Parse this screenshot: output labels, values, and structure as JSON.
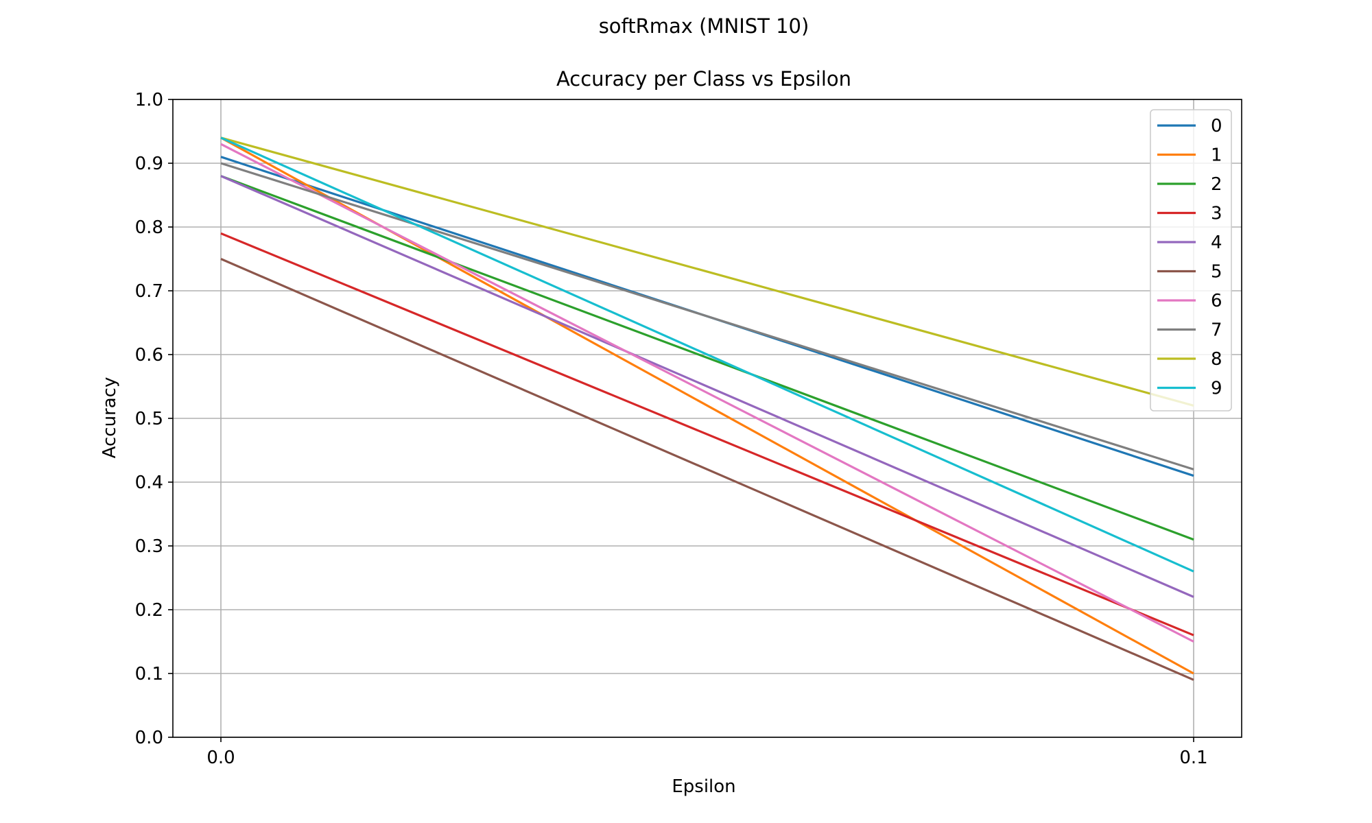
{
  "suptitle": "softRmax (MNIST 10)",
  "chart_data": {
    "type": "line",
    "title": "Accuracy per Class vs Epsilon",
    "xlabel": "Epsilon",
    "ylabel": "Accuracy",
    "x": [
      0.0,
      0.1
    ],
    "x_tick_labels": [
      "0.0",
      "0.1"
    ],
    "ylim": [
      0.0,
      1.0
    ],
    "y_tick_labels": [
      "0.0",
      "0.1",
      "0.2",
      "0.3",
      "0.4",
      "0.5",
      "0.6",
      "0.7",
      "0.8",
      "0.9",
      "1.0"
    ],
    "grid": true,
    "legend_position": "top-right",
    "series": [
      {
        "name": "0",
        "color": "#1f77b4",
        "values": [
          0.91,
          0.41
        ]
      },
      {
        "name": "1",
        "color": "#ff7f0e",
        "values": [
          0.94,
          0.1
        ]
      },
      {
        "name": "2",
        "color": "#2ca02c",
        "values": [
          0.88,
          0.31
        ]
      },
      {
        "name": "3",
        "color": "#d62728",
        "values": [
          0.79,
          0.16
        ]
      },
      {
        "name": "4",
        "color": "#9467bd",
        "values": [
          0.88,
          0.22
        ]
      },
      {
        "name": "5",
        "color": "#8c564b",
        "values": [
          0.75,
          0.09
        ]
      },
      {
        "name": "6",
        "color": "#e377c2",
        "values": [
          0.93,
          0.15
        ]
      },
      {
        "name": "7",
        "color": "#7f7f7f",
        "values": [
          0.9,
          0.42
        ]
      },
      {
        "name": "8",
        "color": "#bcbd22",
        "values": [
          0.94,
          0.52
        ]
      },
      {
        "name": "9",
        "color": "#17becf",
        "values": [
          0.94,
          0.26
        ]
      }
    ]
  }
}
